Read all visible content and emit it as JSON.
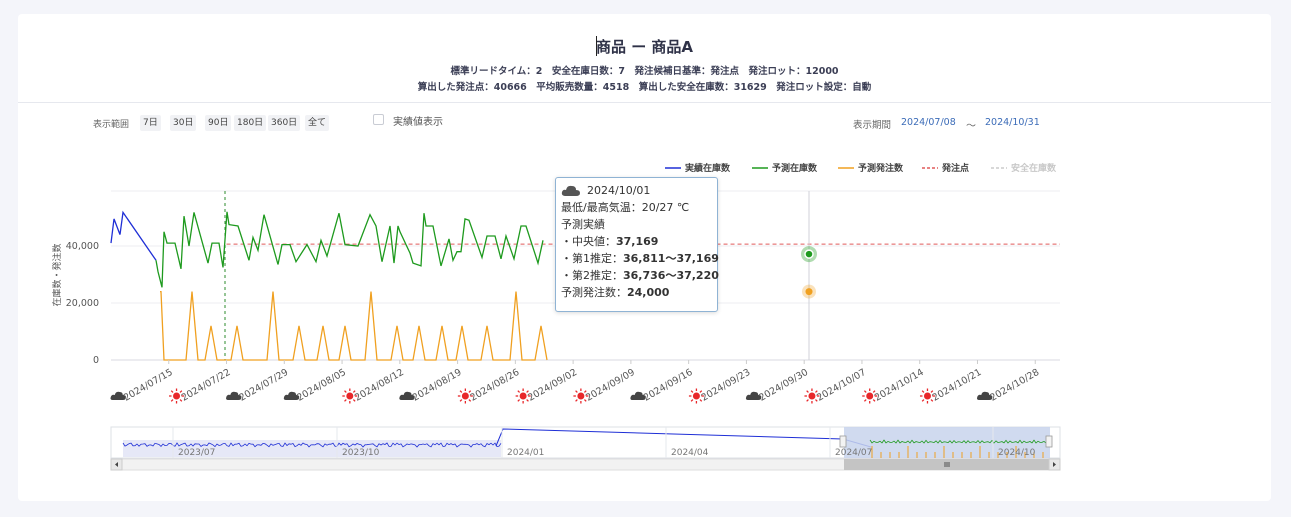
{
  "header": {
    "title": "商品 ー 商品A",
    "info_line1": "標準リードタイム：2　安全在庫日数：7　発注候補日基準：発注点　発注ロット：12000",
    "info_line2": "算出した発注点：40666　平均販売数量：4518　算出した安全在庫数：31629　発注ロット設定：自動"
  },
  "controls": {
    "range_label": "表示範囲",
    "range_buttons": [
      "7日",
      "30日",
      "90日",
      "180日",
      "360日",
      "全て"
    ],
    "actual_checkbox_label": "実績値表示",
    "period_label": "表示期間",
    "period_from": "2024/07/08",
    "period_sep": "〜",
    "period_to": "2024/10/31"
  },
  "tooltip": {
    "date": "2024/10/01",
    "temp_line": "最低/最高気温：20/27 ℃",
    "section": "予測実績",
    "median_label": "・中央値：",
    "median_value": "37,169",
    "q1_label": "・第1推定：",
    "q1_value": "36,811〜37,169",
    "q2_label": "・第2推定：",
    "q2_value": "36,736〜37,220",
    "order_label": "予測発注数：",
    "order_value": "24,000",
    "weather_icon": "cloud-icon"
  },
  "colors": {
    "actual": "#1f2fd6",
    "forecast": "#1e9a1e",
    "order": "#f0a020",
    "reorder": "#e05a5a",
    "safety": "#cccccc"
  },
  "chart_data": {
    "type": "line",
    "ylabel": "在庫数・発注数",
    "yticks": [
      0,
      20000,
      40000
    ],
    "ytick_labels": [
      "0",
      "20,000",
      "40,000"
    ],
    "ylim": [
      0,
      60000
    ],
    "xlim": [
      "2024/07/08",
      "2024/10/31"
    ],
    "xtick_labels": [
      "2024/07/15",
      "2024/07/22",
      "2024/07/29",
      "2024/08/05",
      "2024/08/12",
      "2024/08/19",
      "2024/08/26",
      "2024/09/02",
      "2024/09/09",
      "2024/09/16",
      "2024/09/23",
      "2024/09/30",
      "2024/10/07",
      "2024/10/14",
      "2024/10/21",
      "2024/10/28"
    ],
    "weather": [
      "cloud",
      "sun",
      "cloud",
      "cloud",
      "sun",
      "cloud",
      "sun",
      "sun",
      "sun",
      "cloud",
      "sun",
      "cloud",
      "sun",
      "sun",
      "sun",
      "cloud"
    ],
    "legend": [
      {
        "name": "実績在庫数",
        "style": "solid",
        "color": "#1f2fd6"
      },
      {
        "name": "予測在庫数",
        "style": "solid",
        "color": "#1e9a1e"
      },
      {
        "name": "予測発注数",
        "style": "solid",
        "color": "#f0a020"
      },
      {
        "name": "発注点",
        "style": "dashed",
        "color": "#e05a5a"
      },
      {
        "name": "安全在庫数",
        "style": "dashed",
        "color": "#cccccc"
      }
    ],
    "reorder_point": 40666,
    "series": [
      {
        "name": "実績在庫数",
        "color": "#1f2fd6",
        "points": [
          [
            0,
            41000
          ],
          [
            3,
            49500
          ],
          [
            9,
            44000
          ],
          [
            12,
            51800
          ],
          [
            45,
            35000
          ]
        ]
      },
      {
        "name": "予測在庫数",
        "color": "#1e9a1e",
        "points": [
          [
            45,
            35000
          ],
          [
            47,
            31000
          ],
          [
            51,
            25500
          ],
          [
            53,
            45000
          ],
          [
            56,
            41000
          ],
          [
            64,
            41000
          ],
          [
            70,
            32000
          ],
          [
            73,
            50500
          ],
          [
            78,
            40000
          ],
          [
            83,
            51800
          ],
          [
            97,
            34000
          ],
          [
            101,
            41000
          ],
          [
            108,
            41000
          ],
          [
            112,
            32500
          ],
          [
            116,
            52000
          ],
          [
            118,
            47500
          ],
          [
            127,
            47000
          ],
          [
            138,
            35000
          ],
          [
            142,
            43000
          ],
          [
            147,
            38500
          ],
          [
            153,
            51000
          ],
          [
            167,
            33500
          ],
          [
            171,
            40500
          ],
          [
            179,
            40500
          ],
          [
            185,
            34500
          ],
          [
            196,
            40500
          ],
          [
            205,
            34500
          ],
          [
            210,
            42000
          ],
          [
            216,
            36500
          ],
          [
            228,
            51500
          ],
          [
            234,
            40500
          ],
          [
            247,
            40000
          ],
          [
            259,
            51000
          ],
          [
            265,
            47000
          ],
          [
            271,
            34500
          ],
          [
            279,
            47000
          ],
          [
            283,
            34000
          ],
          [
            287,
            47000
          ],
          [
            289,
            45000
          ],
          [
            299,
            37500
          ],
          [
            302,
            34000
          ],
          [
            310,
            33000
          ],
          [
            313,
            51500
          ],
          [
            315,
            47000
          ],
          [
            322,
            47000
          ],
          [
            330,
            33000
          ],
          [
            338,
            42500
          ],
          [
            342,
            35000
          ],
          [
            346,
            38000
          ],
          [
            350,
            38000
          ],
          [
            354,
            49500
          ],
          [
            358,
            49000
          ],
          [
            371,
            36000
          ],
          [
            376,
            43500
          ],
          [
            384,
            43500
          ],
          [
            390,
            35500
          ],
          [
            395,
            43500
          ],
          [
            403,
            35500
          ],
          [
            410,
            47000
          ],
          [
            415,
            47000
          ],
          [
            427,
            34000
          ],
          [
            432,
            42000
          ]
        ]
      },
      {
        "name": "予測発注数",
        "color": "#f0a020",
        "points": [
          [
            49,
            24000
          ],
          [
            50,
            24000
          ],
          [
            53,
            0
          ],
          [
            75,
            0
          ],
          [
            81,
            24000
          ],
          [
            87,
            0
          ],
          [
            94,
            0
          ],
          [
            100,
            12000
          ],
          [
            106,
            0
          ],
          [
            120,
            0
          ],
          [
            126,
            12000
          ],
          [
            132,
            0
          ],
          [
            156,
            0
          ],
          [
            162,
            24000
          ],
          [
            168,
            0
          ],
          [
            182,
            0
          ],
          [
            188,
            12000
          ],
          [
            194,
            0
          ],
          [
            206,
            0
          ],
          [
            212,
            12000
          ],
          [
            218,
            0
          ],
          [
            228,
            0
          ],
          [
            234,
            12000
          ],
          [
            240,
            0
          ],
          [
            254,
            0
          ],
          [
            260,
            24000
          ],
          [
            266,
            0
          ],
          [
            280,
            0
          ],
          [
            286,
            12000
          ],
          [
            292,
            0
          ],
          [
            302,
            0
          ],
          [
            308,
            12000
          ],
          [
            314,
            0
          ],
          [
            325,
            0
          ],
          [
            331,
            12000
          ],
          [
            337,
            0
          ],
          [
            345,
            0
          ],
          [
            351,
            12000
          ],
          [
            357,
            0
          ],
          [
            370,
            0
          ],
          [
            376,
            12000
          ],
          [
            382,
            0
          ],
          [
            399,
            0
          ],
          [
            405,
            24000
          ],
          [
            411,
            0
          ],
          [
            424,
            0
          ],
          [
            430,
            12000
          ],
          [
            436,
            0
          ]
        ]
      }
    ],
    "highlight": {
      "date": "2024/10/01",
      "forecast": 37169,
      "order": 24000
    },
    "navigator": {
      "labels": [
        "2023/07",
        "2023/10",
        "2024/01",
        "2024/04",
        "2024/07",
        "2024/10"
      ]
    }
  }
}
